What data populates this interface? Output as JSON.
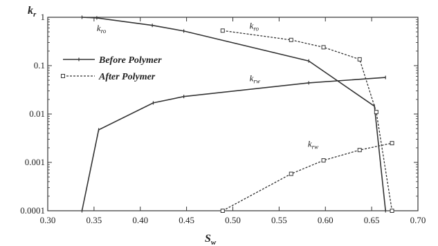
{
  "chart_data": {
    "type": "line",
    "xlabel": "S",
    "xlabel_sub": "w",
    "ylabel": "k",
    "ylabel_sub": "r",
    "xlim": [
      0.3,
      0.7
    ],
    "ylim": [
      0.0001,
      1
    ],
    "yscale": "log",
    "grid": false,
    "x_ticks": [
      0.3,
      0.35,
      0.4,
      0.45,
      0.5,
      0.55,
      0.6,
      0.65,
      0.7
    ],
    "x_tick_labels": [
      "0.30",
      "0.35",
      "0.40",
      "0.45",
      "0.50",
      "0.55",
      "0.60",
      "0.65",
      "0.70"
    ],
    "y_ticks": [
      0.0001,
      0.001,
      0.01,
      0.1,
      1
    ],
    "y_tick_labels": [
      "0.0001",
      "0.001",
      "0.01",
      "0.1",
      "1"
    ],
    "legend": {
      "position": "left",
      "entries": [
        "Before Polymer",
        "After Polymer"
      ]
    },
    "series": [
      {
        "name": "Before Polymer",
        "curve": "kro",
        "style": "solid",
        "marker": "tick",
        "x": [
          0.337,
          0.353,
          0.413,
          0.447,
          0.582,
          0.653,
          0.665
        ],
        "y": [
          1.0,
          0.97,
          0.68,
          0.52,
          0.125,
          0.0145,
          0.0001
        ]
      },
      {
        "name": "Before Polymer",
        "curve": "krw",
        "style": "solid",
        "marker": "tick",
        "x": [
          0.337,
          0.355,
          0.414,
          0.447,
          0.582,
          0.665
        ],
        "y": [
          0.0001,
          0.0047,
          0.017,
          0.023,
          0.044,
          0.057
        ]
      },
      {
        "name": "After Polymer",
        "curve": "kro",
        "style": "dashed",
        "marker": "square",
        "x": [
          0.489,
          0.563,
          0.598,
          0.637,
          0.655,
          0.672
        ],
        "y": [
          0.53,
          0.34,
          0.24,
          0.135,
          0.011,
          0.0001
        ]
      },
      {
        "name": "After Polymer",
        "curve": "krw",
        "style": "dashed",
        "marker": "square",
        "x": [
          0.489,
          0.563,
          0.598,
          0.637,
          0.672
        ],
        "y": [
          0.0001,
          0.00058,
          0.0011,
          0.0018,
          0.0025
        ]
      }
    ],
    "annotations": [
      {
        "main": "k",
        "sub": "ro",
        "x": 0.353,
        "y": 0.52
      },
      {
        "main": "k",
        "sub": "ro",
        "x": 0.518,
        "y": 0.58
      },
      {
        "main": "k",
        "sub": "rw",
        "x": 0.518,
        "y": 0.048
      },
      {
        "main": "k",
        "sub": "rw",
        "x": 0.581,
        "y": 0.0021
      }
    ]
  }
}
